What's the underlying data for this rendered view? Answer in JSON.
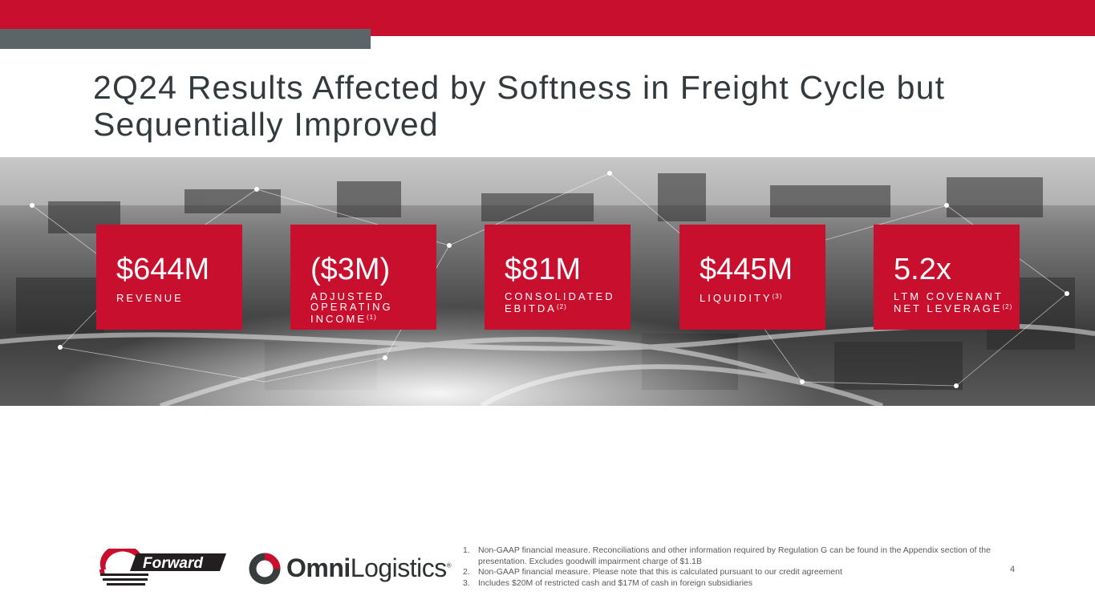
{
  "title": "2Q24 Results Affected by Softness in Freight Cycle but Sequentially Improved",
  "colors": {
    "brand_red": "#c8102e",
    "bar_gray": "#5b6466",
    "title_text": "#333a3d"
  },
  "kpis": [
    {
      "value": "$644M",
      "label": "REVENUE",
      "sup": ""
    },
    {
      "value": "($3M)",
      "label": "ADJUSTED OPERATING INCOME",
      "sup": "(1)"
    },
    {
      "value": "$81M",
      "label": "CONSOLIDATED EBITDA",
      "sup": "(2)"
    },
    {
      "value": "$445M",
      "label": "LIQUIDITY",
      "sup": "(3)"
    },
    {
      "value": "5.2x",
      "label": "LTM COVENANT NET LEVERAGE",
      "sup": "(2)"
    }
  ],
  "logos": {
    "forward": "Forward",
    "forward_tm": "™",
    "omni_bold": "Omni",
    "omni_light": "Logistics",
    "omni_reg": "®"
  },
  "footnotes": [
    {
      "num": "1.",
      "text": "Non-GAAP financial measure. Reconciliations and other information required by Regulation G can be found in the Appendix section of the presentation. Excludes goodwill impairment charge of $1.1B"
    },
    {
      "num": "2.",
      "text": "Non-GAAP financial measure. Please note that this is calculated pursuant to our credit agreement"
    },
    {
      "num": "3.",
      "text": "Includes $20M of restricted cash and $17M of cash in foreign subsidiaries"
    }
  ],
  "page_number": "4"
}
